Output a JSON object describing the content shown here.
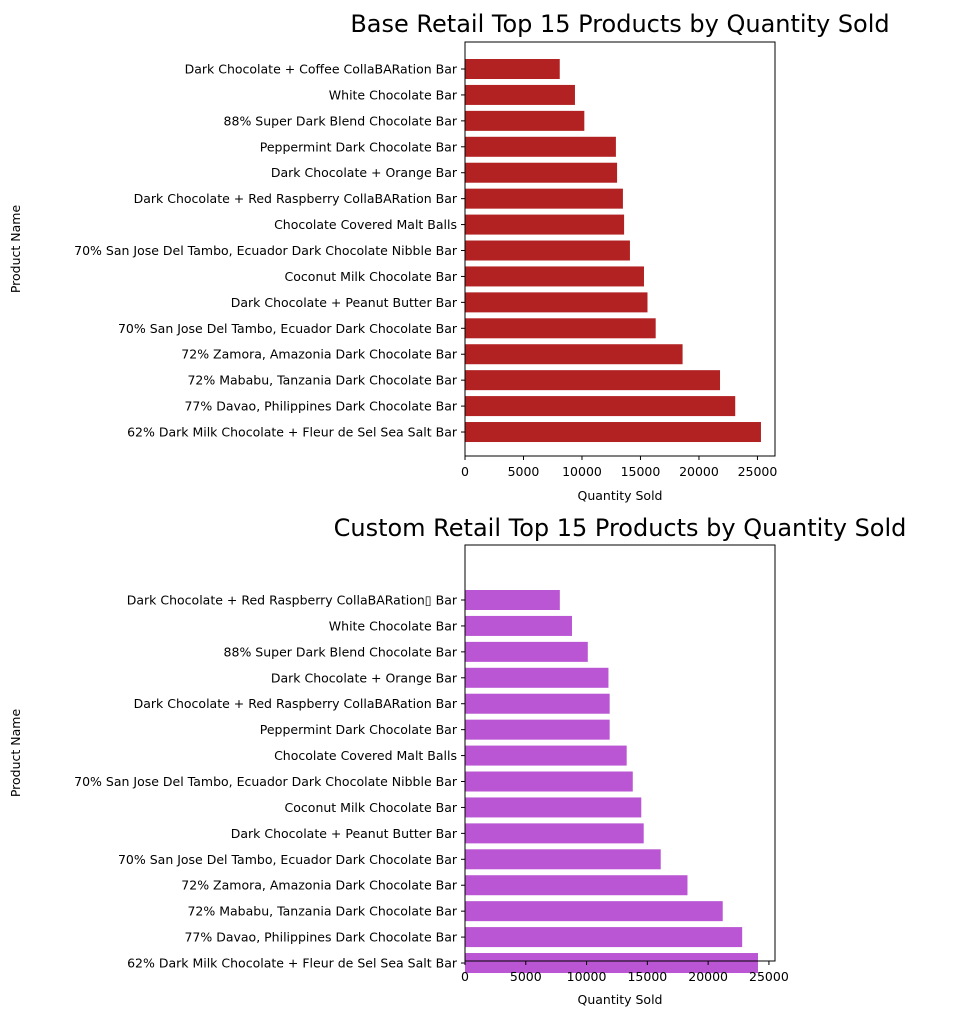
{
  "chart_data": [
    {
      "type": "bar",
      "orientation": "horizontal",
      "title": "Base Retail Top 15  Products by Quantity Sold",
      "xlabel": "Quantity Sold",
      "ylabel": "Product Name",
      "xlim": [
        0,
        26500
      ],
      "xticks": [
        0,
        5000,
        10000,
        15000,
        20000,
        25000
      ],
      "grid": false,
      "color": "#b22222",
      "categories": [
        "Dark Chocolate + Coffee CollaBARation Bar",
        "White Chocolate Bar",
        "88% Super Dark Blend Chocolate Bar",
        "Peppermint Dark Chocolate Bar",
        "Dark Chocolate + Orange Bar",
        "Dark Chocolate + Red Raspberry CollaBARation Bar",
        "Chocolate Covered Malt Balls",
        "70% San Jose Del Tambo, Ecuador Dark Chocolate Nibble Bar",
        "Coconut Milk Chocolate Bar",
        "Dark Chocolate + Peanut Butter Bar",
        "70% San Jose Del Tambo, Ecuador Dark Chocolate Bar",
        "72% Zamora, Amazonia Dark Chocolate Bar",
        "72% Mababu, Tanzania Dark Chocolate Bar",
        "77% Davao, Philippines Dark Chocolate Bar",
        "62% Dark Milk Chocolate + Fleur de Sel Sea Salt Bar"
      ],
      "values": [
        8100,
        9400,
        10200,
        12900,
        13000,
        13500,
        13600,
        14100,
        15300,
        15600,
        16300,
        18600,
        21800,
        23100,
        25300
      ]
    },
    {
      "type": "bar",
      "orientation": "horizontal",
      "title": "Custom Retail Top 15  Products by Quantity Sold",
      "xlabel": "Quantity Sold",
      "ylabel": "Product Name",
      "xlim": [
        0,
        25500
      ],
      "xticks": [
        0,
        5000,
        10000,
        15000,
        20000,
        25000
      ],
      "grid": false,
      "color": "#ba55d3",
      "categories": [
        "Dark Chocolate + Red Raspberry CollaBARation▯ Bar",
        "White Chocolate Bar",
        "88% Super Dark Blend Chocolate Bar",
        "Dark Chocolate + Orange Bar",
        "Dark Chocolate + Red Raspberry CollaBARation Bar",
        "Peppermint Dark Chocolate Bar",
        "Chocolate Covered Malt Balls",
        "70% San Jose Del Tambo, Ecuador Dark Chocolate Nibble Bar",
        "Coconut Milk Chocolate Bar",
        "Dark Chocolate + Peanut Butter Bar",
        "70% San Jose Del Tambo, Ecuador Dark Chocolate Bar",
        "72% Zamora, Amazonia Dark Chocolate Bar",
        "72% Mababu, Tanzania Dark Chocolate Bar",
        "77% Davao, Philippines Dark Chocolate Bar",
        "62% Dark Milk Chocolate + Fleur de Sel Sea Salt Bar"
      ],
      "values": [
        7800,
        8800,
        10100,
        11800,
        11900,
        11900,
        13300,
        13800,
        14500,
        14700,
        16100,
        18300,
        21200,
        22800,
        24100
      ]
    }
  ]
}
